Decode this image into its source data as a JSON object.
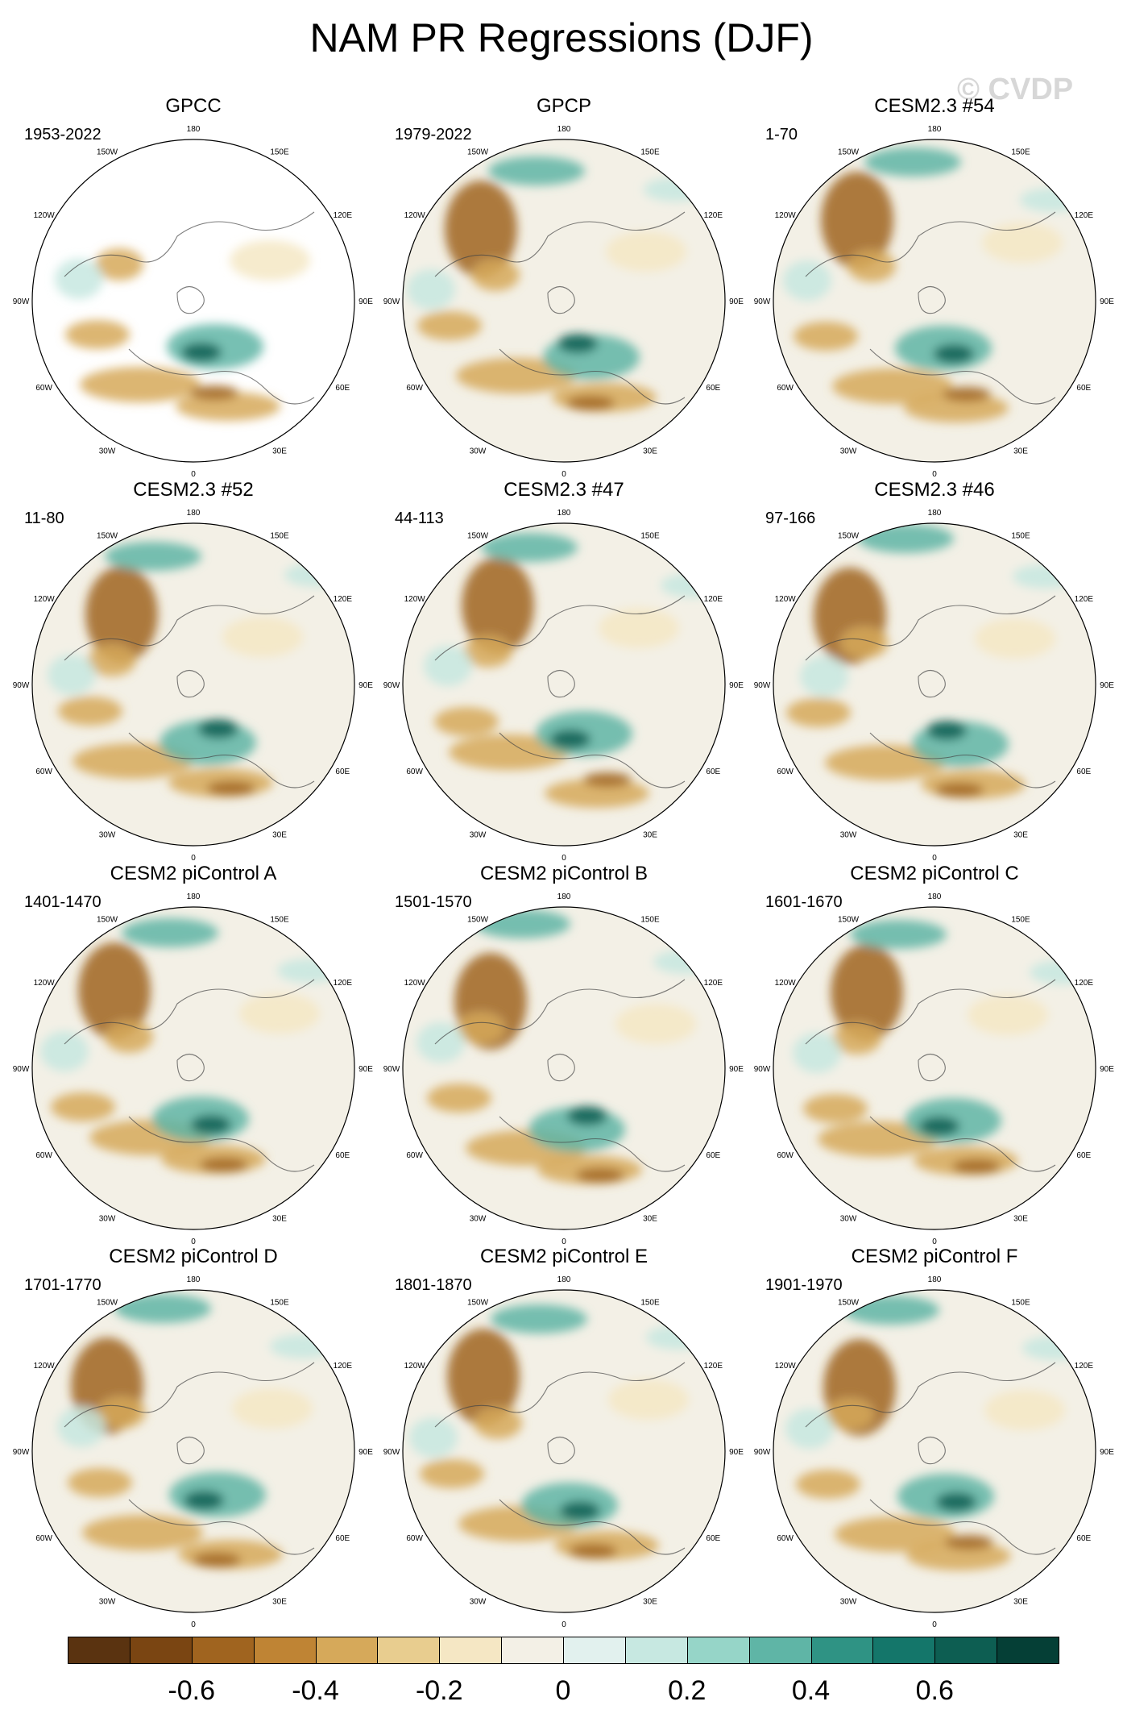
{
  "title": "NAM PR Regressions (DJF)",
  "watermark": "© CVDP",
  "longitude_labels": [
    "180",
    "150E",
    "120E",
    "90E",
    "60E",
    "30E",
    "0",
    "30W",
    "60W",
    "90W",
    "120W",
    "150W"
  ],
  "colors": {
    "brown_dark": "#5a3310",
    "brown": "#a0641f",
    "tan": "#d6a95a",
    "cream": "#f5e7c4",
    "neutral": "#f3f0e6",
    "teal_light": "#c7e8e1",
    "teal": "#5fb5a6",
    "teal_dark": "#0d5e52"
  },
  "panels": [
    {
      "title": "GPCC",
      "period": "1953-2022",
      "masked": true
    },
    {
      "title": "GPCP",
      "period": "1979-2022",
      "masked": false
    },
    {
      "title": "CESM2.3 #54",
      "period": "1-70",
      "masked": false
    },
    {
      "title": "CESM2.3 #52",
      "period": "11-80",
      "masked": false
    },
    {
      "title": "CESM2.3 #47",
      "period": "44-113",
      "masked": false
    },
    {
      "title": "CESM2.3 #46",
      "period": "97-166",
      "masked": false
    },
    {
      "title": "CESM2 piControl A",
      "period": "1401-1470",
      "masked": false
    },
    {
      "title": "CESM2 piControl B",
      "period": "1501-1570",
      "masked": false
    },
    {
      "title": "CESM2 piControl C",
      "period": "1601-1670",
      "masked": false
    },
    {
      "title": "CESM2 piControl D",
      "period": "1701-1770",
      "masked": false
    },
    {
      "title": "CESM2 piControl E",
      "period": "1801-1870",
      "masked": false
    },
    {
      "title": "CESM2 piControl F",
      "period": "1901-1970",
      "masked": false
    }
  ],
  "colorbar": {
    "colors": [
      "#5a3310",
      "#7a4512",
      "#a0641f",
      "#bf8434",
      "#d6a95a",
      "#e8cd8f",
      "#f5e7c4",
      "#f3f0e6",
      "#e2f1ee",
      "#c7e8e1",
      "#96d5c8",
      "#5fb5a6",
      "#2f9384",
      "#14766a",
      "#0d5e52",
      "#053f36"
    ],
    "labels": [
      "-0.6",
      "-0.4",
      "-0.2",
      "0",
      "0.2",
      "0.4",
      "0.6"
    ]
  }
}
